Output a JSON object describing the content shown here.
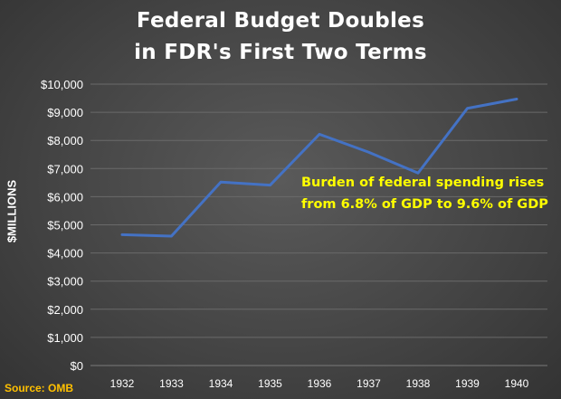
{
  "chart_data": {
    "type": "line",
    "title": [
      "Federal Budget Doubles",
      "in FDR's First Two Terms"
    ],
    "ylabel": "$MILLIONS",
    "xlabel": "",
    "categories": [
      "1932",
      "1933",
      "1934",
      "1935",
      "1936",
      "1937",
      "1938",
      "1939",
      "1940"
    ],
    "series": [
      {
        "values": [
          4650,
          4600,
          6520,
          6410,
          8220,
          7580,
          6840,
          9140,
          9470
        ]
      }
    ],
    "ylim": [
      0,
      10000
    ],
    "yticks": [
      "$0",
      "$1,000",
      "$2,000",
      "$3,000",
      "$4,000",
      "$5,000",
      "$6,000",
      "$7,000",
      "$8,000",
      "$9,000",
      "$10,000"
    ],
    "grid": true,
    "annotation": [
      "Burden of federal spending rises",
      "from 6.8% of GDP to 9.6% of GDP"
    ],
    "source": "Source: OMB",
    "colors": {
      "line": "#4472c4",
      "annotation": "#ffff00",
      "source": "#ffc000",
      "text": "#ffffff",
      "grid": "#6a6a6a"
    }
  }
}
